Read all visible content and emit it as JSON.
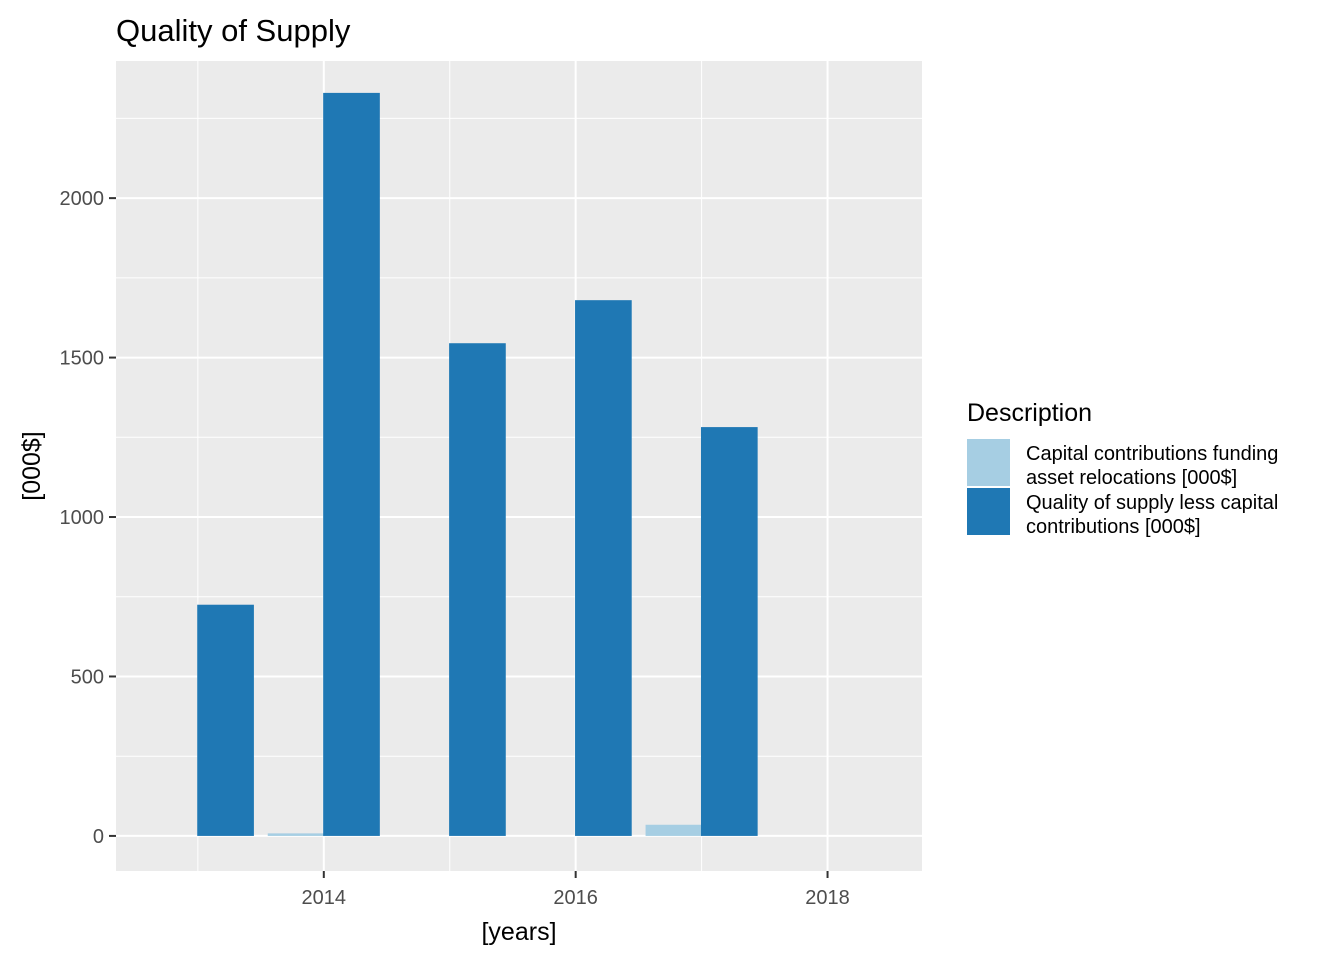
{
  "chart_data": {
    "type": "bar",
    "title": "Quality of Supply",
    "xlabel": "[years]",
    "ylabel": "[000$]",
    "xlim": [
      2012.35,
      2018.75
    ],
    "ylim": [
      -110,
      2430
    ],
    "x_ticks": [
      2014,
      2016,
      2018
    ],
    "y_ticks": [
      0,
      500,
      1000,
      1500,
      2000
    ],
    "grid": true,
    "legend": {
      "title": "Description",
      "position": "right",
      "entries": [
        {
          "line1": "Capital contributions funding",
          "line2": "asset relocations [000$]",
          "color": "#a6cee3"
        },
        {
          "line1": "Quality of supply less capital",
          "line2": "contributions [000$]",
          "color": "#1f78b4"
        }
      ]
    },
    "bar_width_years": 0.45,
    "series": [
      {
        "name": "Capital contributions funding asset relocations [000$]",
        "color": "#a6cee3",
        "x": [
          2013.78,
          2016.78
        ],
        "values": [
          8,
          35
        ]
      },
      {
        "name": "Quality of supply less capital contributions [000$]",
        "color": "#1f78b4",
        "x": [
          2013.22,
          2014.22,
          2015.22,
          2016.22,
          2017.22
        ],
        "values": [
          725,
          2330,
          1545,
          1680,
          1282
        ]
      }
    ]
  }
}
